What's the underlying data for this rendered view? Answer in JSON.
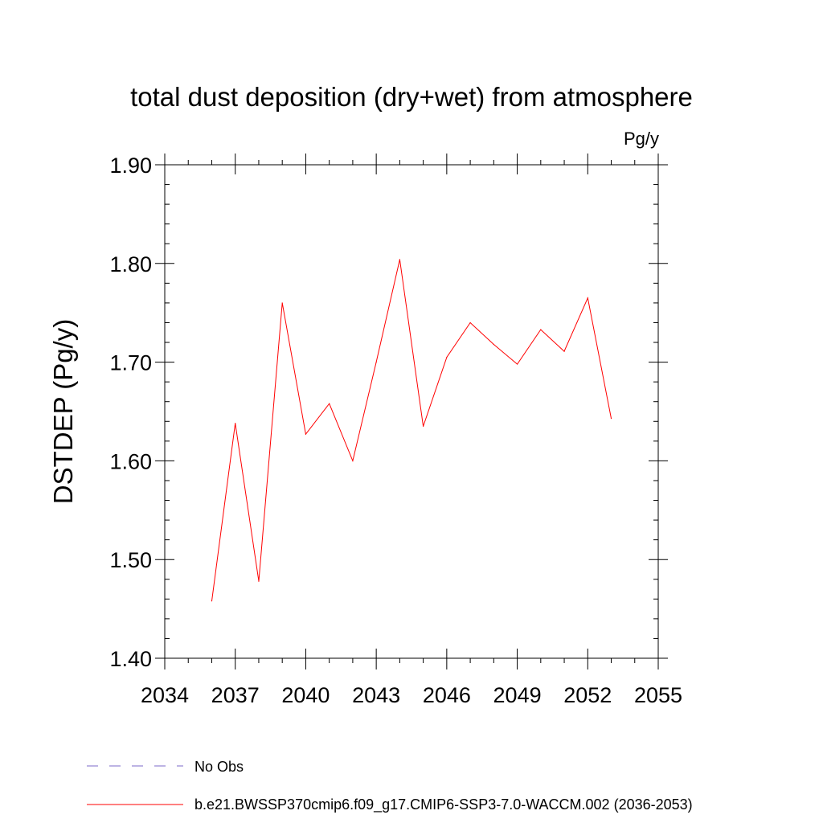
{
  "chart_data": {
    "type": "line",
    "title": "total dust deposition (dry+wet) from atmosphere",
    "units_label": "Pg/y",
    "ylabel": "DSTDEP  (Pg/y)",
    "xlabel": "",
    "xlim": [
      2034,
      2055
    ],
    "ylim": [
      1.4,
      1.9
    ],
    "x_ticks": [
      2034,
      2037,
      2040,
      2043,
      2046,
      2049,
      2052,
      2055
    ],
    "x_tick_labels": [
      "2034",
      "2037",
      "2040",
      "2043",
      "2046",
      "2049",
      "2052",
      "2055"
    ],
    "y_ticks": [
      1.4,
      1.5,
      1.6,
      1.7,
      1.8,
      1.9
    ],
    "y_tick_labels": [
      "1.40",
      "1.50",
      "1.60",
      "1.70",
      "1.80",
      "1.90"
    ],
    "grid": false,
    "series": [
      {
        "name": "b.e21.BWSSP370cmip6.f09_g17.CMIP6-SSP3-7.0-WACCM.002 (2036-2053)",
        "color": "#ff0000",
        "style": "solid",
        "x": [
          2036,
          2037,
          2038,
          2039,
          2040,
          2041,
          2042,
          2043,
          2044,
          2045,
          2046,
          2047,
          2048,
          2049,
          2050,
          2051,
          2052,
          2053
        ],
        "values": [
          1.458,
          1.638,
          1.478,
          1.76,
          1.627,
          1.658,
          1.6,
          1.7,
          1.804,
          1.635,
          1.705,
          1.74,
          1.718,
          1.698,
          1.733,
          1.711,
          1.765,
          1.643
        ]
      }
    ],
    "legend": [
      {
        "label": "No Obs",
        "color": "#7b68c8",
        "style": "dashed"
      },
      {
        "label": "b.e21.BWSSP370cmip6.f09_g17.CMIP6-SSP3-7.0-WACCM.002 (2036-2053)",
        "color": "#ff0000",
        "style": "solid"
      }
    ],
    "legend_position": "bottom"
  }
}
